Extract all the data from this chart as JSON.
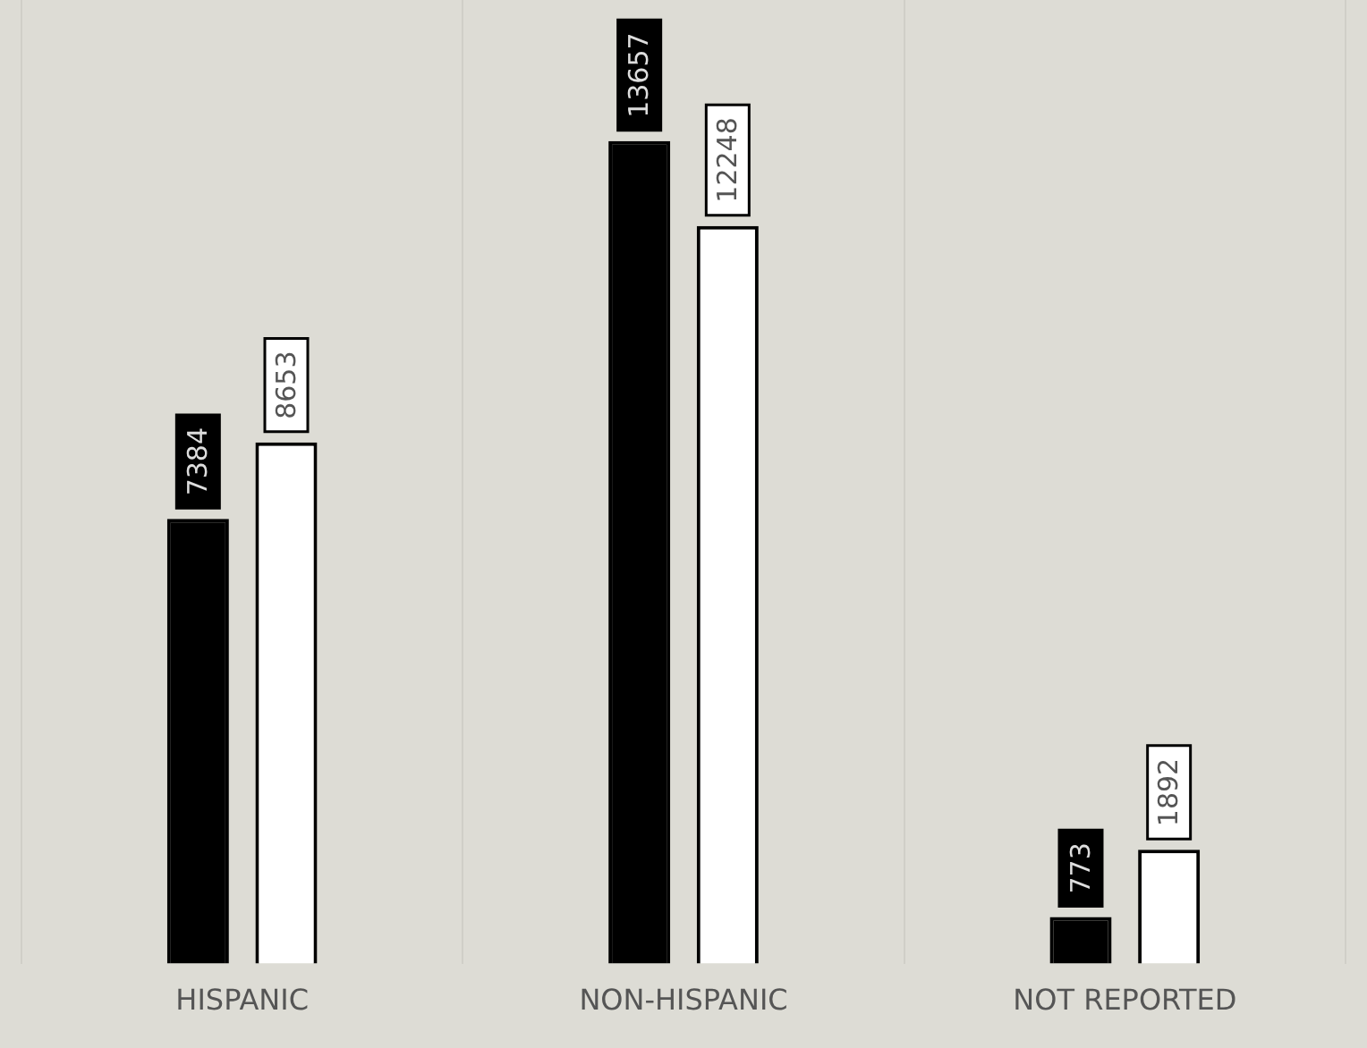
{
  "chart_data": {
    "type": "bar",
    "categories": [
      "HISPANIC",
      "NON-HISPANIC",
      "NOT REPORTED"
    ],
    "series": [
      {
        "color": "#000000",
        "values": [
          7384,
          13657,
          773
        ]
      },
      {
        "color": "#ffffff",
        "values": [
          8653,
          12248,
          1892
        ]
      }
    ],
    "ylim": [
      0,
      16000
    ],
    "data_labels": true,
    "grid": "x",
    "legend": false
  }
}
